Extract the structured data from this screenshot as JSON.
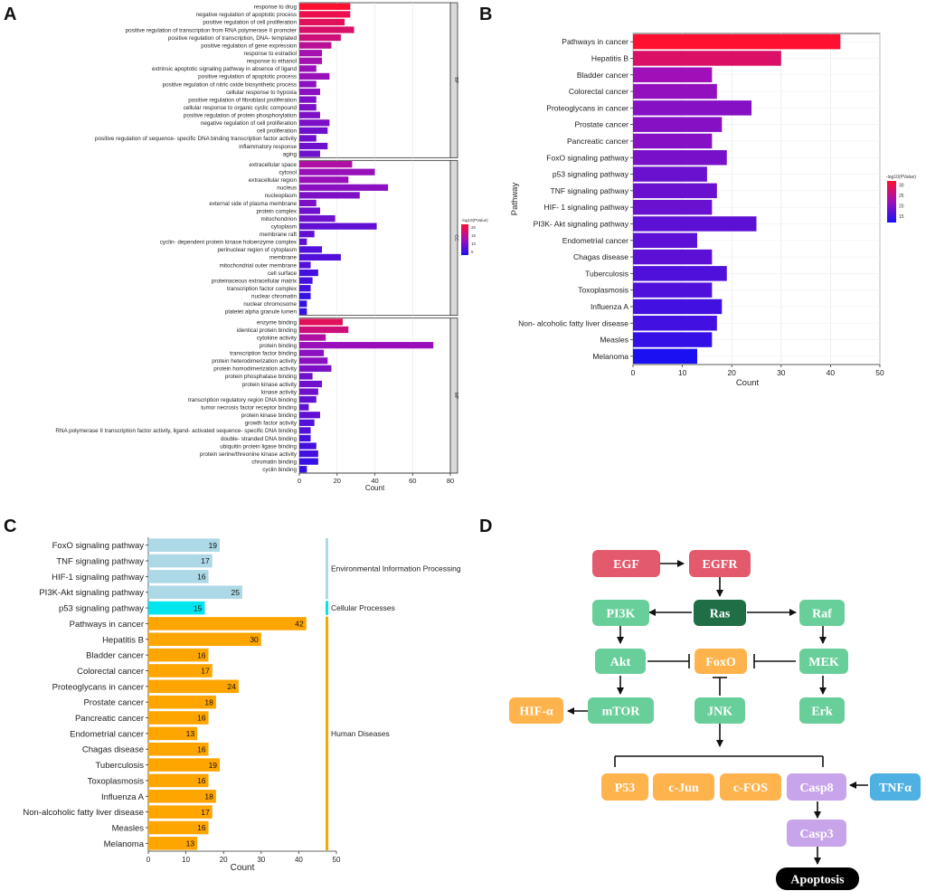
{
  "panel_labels": {
    "a": "A",
    "b": "B",
    "c": "C",
    "d": "D"
  },
  "chart_data": [
    {
      "type": "bar",
      "orientation": "horizontal",
      "xlabel": "Count",
      "xlim": [
        0,
        80
      ],
      "xticks": [
        0,
        20,
        40,
        60,
        80
      ],
      "legend": {
        "title": "-log10(PValue)",
        "ticks": [
          20,
          15,
          10,
          5
        ],
        "min": 3,
        "max": 22,
        "colors": [
          "#1a10f2",
          "#a010b8",
          "#ff1030"
        ]
      },
      "facets": [
        {
          "label": "BP",
          "categories": [
            "response to drug",
            "negative regulation of apoptotic process",
            "positive regulation of cell proliferation",
            "positive regulation of transcription from RNA polymerase II promoter",
            "positive regulation of transcription, DNA- templated",
            "positive regulation of gene expression",
            "response to estradiol",
            "response to ethanol",
            "extrinsic apoptotic signaling pathway in absence of ligand",
            "positive regulation of apoptotic process",
            "positive regulation of nitric oxide biosynthetic process",
            "cellular response to hypoxia",
            "positive regulation of fibroblast proliferation",
            "cellular response to organic cyclic compound",
            "positive regulation of protein phosphorylation",
            "negative regulation of cell proliferation",
            "cell proliferation",
            "positive regulation of sequence- specific DNA binding transcription factor activity",
            "inflammatory response",
            "aging"
          ],
          "values": [
            27,
            27,
            24,
            29,
            22,
            17,
            12,
            12,
            9,
            16,
            9,
            11,
            9,
            9,
            11,
            16,
            15,
            9,
            15,
            11
          ],
          "color_values": [
            22,
            20,
            19,
            18,
            17,
            15,
            13,
            13,
            12,
            12,
            11,
            11,
            10,
            10,
            10,
            10,
            9,
            9,
            9,
            9
          ]
        },
        {
          "label": "CC",
          "categories": [
            "extracellular space",
            "cytosol",
            "extracellular region",
            "nucleus",
            "nucleoplasm",
            "external side of plasma membrane",
            "protein complex",
            "mitochondrion",
            "cytoplasm",
            "membrane raft",
            "cyclin- dependent protein kinase holoenzyme complex",
            "perinuclear region of cytoplasm",
            "membrane",
            "mitochondrial outer membrane",
            "cell surface",
            "proteinaceous extracellular matrix",
            "transcription factor complex",
            "nuclear chromatin",
            "nuclear chromosome",
            "platelet alpha granule lumen"
          ],
          "values": [
            28,
            40,
            26,
            47,
            32,
            9,
            11,
            19,
            41,
            8,
            4,
            12,
            22,
            6,
            10,
            7,
            6,
            6,
            4,
            4
          ],
          "color_values": [
            14,
            12,
            12,
            11,
            10,
            10,
            9,
            9,
            8,
            8,
            8,
            7,
            7,
            7,
            6,
            6,
            6,
            5,
            5,
            5
          ]
        },
        {
          "label": "MF",
          "categories": [
            "enzyme binding",
            "identical protein binding",
            "cytokine activity",
            "protein binding",
            "transcription factor binding",
            "protein heterodimerization activity",
            "protein homodimerization activity",
            "protein phosphatase binding",
            "protein kinase activity",
            "kinase activity",
            "transcription regulatory region DNA binding",
            "tumor necrosis factor receptor binding",
            "protein kinase binding",
            "growth factor activity",
            "RNA polymerase II transcription factor activity, ligand- activated sequence- specific DNA binding",
            "double- stranded DNA binding",
            "ubiquitin protein ligase binding",
            "protein serine/threonine kinase activity",
            "chromatin binding",
            "cyclin binding"
          ],
          "values": [
            23,
            26,
            14,
            71,
            13,
            15,
            17,
            7,
            12,
            10,
            9,
            5,
            11,
            8,
            6,
            6,
            9,
            10,
            10,
            4
          ],
          "color_values": [
            19,
            17,
            14,
            12,
            11,
            11,
            10,
            9,
            9,
            9,
            8,
            8,
            8,
            7,
            7,
            6,
            6,
            6,
            5,
            5
          ]
        }
      ]
    },
    {
      "type": "bar",
      "orientation": "horizontal",
      "xlabel": "Count",
      "ylabel": "Pathway",
      "xlim": [
        0,
        50
      ],
      "xticks": [
        0,
        10,
        20,
        30,
        40,
        50
      ],
      "legend": {
        "title": "-log10(PValue)",
        "ticks": [
          30,
          25,
          20,
          15
        ],
        "min": 12,
        "max": 32,
        "colors": [
          "#1a10f2",
          "#a010b8",
          "#ff1030"
        ]
      },
      "categories": [
        "Pathways in cancer",
        "Hepatitis B",
        "Bladder cancer",
        "Colorectal cancer",
        "Proteoglycans in cancer",
        "Prostate cancer",
        "Pancreatic cancer",
        "FoxO signaling pathway",
        "p53 signaling pathway",
        "TNF signaling pathway",
        "HIF- 1 signaling pathway",
        "PI3K- Akt signaling pathway",
        "Endometrial cancer",
        "Chagas disease",
        "Tuberculosis",
        "Toxoplasmosis",
        "Influenza A",
        "Non- alcoholic fatty liver disease",
        "Measles",
        "Melanoma"
      ],
      "values": [
        42,
        30,
        16,
        17,
        24,
        18,
        16,
        19,
        15,
        17,
        16,
        25,
        13,
        16,
        19,
        16,
        18,
        17,
        16,
        13
      ],
      "color_values": [
        32,
        28,
        22,
        21,
        20,
        20,
        20,
        19,
        18,
        18,
        18,
        17,
        17,
        17,
        16,
        16,
        15,
        15,
        14,
        12
      ]
    },
    {
      "type": "bar",
      "orientation": "horizontal",
      "xlabel": "Count",
      "xlim": [
        0,
        50
      ],
      "xticks": [
        0,
        10,
        20,
        30,
        40,
        50
      ],
      "categories": [
        "FoxO signaling pathway",
        "TNF signaling pathway",
        "HIF-1 signaling pathway",
        "PI3K-Akt signaling pathway",
        "p53 signaling pathway",
        "Pathways in cancer",
        "Hepatitis B",
        "Bladder cancer",
        "Colorectal cancer",
        "Proteoglycans in cancer",
        "Prostate cancer",
        "Pancreatic cancer",
        "Endometrial cancer",
        "Chagas disease",
        "Tuberculosis",
        "Toxoplasmosis",
        "Influenza A",
        "Non-alcoholic fatty liver disease",
        "Measles",
        "Melanoma"
      ],
      "values": [
        19,
        17,
        16,
        25,
        15,
        42,
        30,
        16,
        17,
        24,
        18,
        16,
        13,
        16,
        19,
        16,
        18,
        17,
        16,
        13
      ],
      "groups": [
        {
          "name": "Environmental Information Processing",
          "start": 0,
          "end": 3,
          "color": "#add8e6"
        },
        {
          "name": "Cellular Processes",
          "start": 4,
          "end": 4,
          "color": "#00e5ee"
        },
        {
          "name": "Human Diseases",
          "start": 5,
          "end": 19,
          "color": "#ffa500"
        }
      ]
    }
  ],
  "diagram": {
    "nodes": [
      {
        "id": "egf",
        "label": "EGF",
        "color": "#e35a6c"
      },
      {
        "id": "egfr",
        "label": "EGFR",
        "color": "#e35a6c"
      },
      {
        "id": "pi3k",
        "label": "PI3K",
        "color": "#69cf9a"
      },
      {
        "id": "ras",
        "label": "Ras",
        "color": "#1f6e45"
      },
      {
        "id": "raf",
        "label": "Raf",
        "color": "#69cf9a"
      },
      {
        "id": "akt",
        "label": "Akt",
        "color": "#69cf9a"
      },
      {
        "id": "foxo",
        "label": "FoxO",
        "color": "#ffb34d"
      },
      {
        "id": "mek",
        "label": "MEK",
        "color": "#69cf9a"
      },
      {
        "id": "hif",
        "label": "HIF-α",
        "color": "#ffb34d"
      },
      {
        "id": "mtor",
        "label": "mTOR",
        "color": "#69cf9a"
      },
      {
        "id": "jnk",
        "label": "JNK",
        "color": "#69cf9a"
      },
      {
        "id": "erk",
        "label": "Erk",
        "color": "#69cf9a"
      },
      {
        "id": "p53",
        "label": "P53",
        "color": "#ffb34d"
      },
      {
        "id": "cjun",
        "label": "c-Jun",
        "color": "#ffb34d"
      },
      {
        "id": "cfos",
        "label": "c-FOS",
        "color": "#ffb34d"
      },
      {
        "id": "casp8",
        "label": "Casp8",
        "color": "#c8a4ea"
      },
      {
        "id": "tnfa",
        "label": "TNFα",
        "color": "#4fb0e2"
      },
      {
        "id": "casp3",
        "label": "Casp3",
        "color": "#c8a4ea"
      },
      {
        "id": "apoptosis",
        "label": "Apoptosis",
        "color": "#000000"
      }
    ]
  }
}
